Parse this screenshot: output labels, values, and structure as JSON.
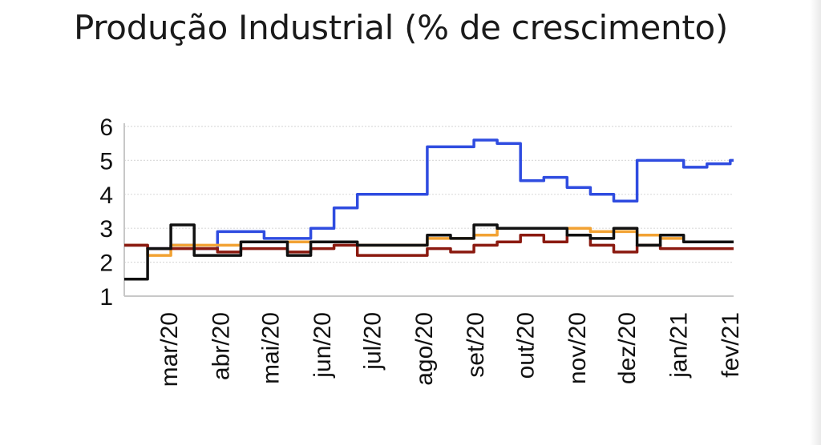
{
  "chart_data": {
    "type": "line",
    "title": "Produção Industrial (% de crescimento)",
    "xlabel": "",
    "ylabel": "",
    "ylim": [
      1,
      6
    ],
    "yticks": [
      1,
      2,
      3,
      4,
      5,
      6
    ],
    "x_tick_labels": [
      "mar/20",
      "abr/20",
      "mai/20",
      "jun/20",
      "jul/20",
      "ago/20",
      "set/20",
      "out/20",
      "nov/20",
      "dez/20",
      "jan/21",
      "fev/21"
    ],
    "grid": "horizontal",
    "legend": "none",
    "x": [
      "2020-02-03",
      "2020-02-17",
      "2020-03-02",
      "2020-03-16",
      "2020-03-30",
      "2020-04-13",
      "2020-04-27",
      "2020-05-11",
      "2020-05-25",
      "2020-06-08",
      "2020-06-22",
      "2020-07-06",
      "2020-07-20",
      "2020-08-03",
      "2020-08-17",
      "2020-08-31",
      "2020-09-14",
      "2020-09-28",
      "2020-10-12",
      "2020-10-26",
      "2020-11-09",
      "2020-11-23",
      "2020-12-07",
      "2020-12-21",
      "2021-01-04",
      "2021-01-18",
      "2021-02-01"
    ],
    "series": [
      {
        "color": "#2f4ce0",
        "values": [
          2.5,
          2.4,
          2.5,
          2.4,
          2.9,
          2.9,
          2.7,
          2.7,
          3.0,
          3.6,
          4.0,
          4.0,
          4.0,
          5.4,
          5.4,
          5.6,
          5.5,
          4.4,
          4.5,
          4.2,
          4.0,
          3.8,
          5.0,
          5.0,
          4.8,
          4.9,
          5.0
        ]
      },
      {
        "color": "#f2a233",
        "values": [
          2.5,
          2.2,
          2.5,
          2.5,
          2.5,
          2.6,
          2.6,
          2.6,
          2.6,
          2.6,
          2.5,
          2.5,
          2.5,
          2.7,
          2.7,
          2.8,
          3.0,
          3.0,
          3.0,
          3.0,
          2.9,
          2.9,
          2.8,
          2.7,
          2.6,
          2.6,
          2.6
        ]
      },
      {
        "color": "#8b1a10",
        "values": [
          2.5,
          2.4,
          2.4,
          2.4,
          2.3,
          2.4,
          2.4,
          2.3,
          2.4,
          2.5,
          2.2,
          2.2,
          2.2,
          2.4,
          2.3,
          2.5,
          2.6,
          2.8,
          2.6,
          2.8,
          2.5,
          2.3,
          2.5,
          2.4,
          2.4,
          2.4,
          2.4
        ]
      },
      {
        "color": "#111111",
        "values": [
          1.5,
          2.4,
          3.1,
          2.2,
          2.2,
          2.6,
          2.6,
          2.2,
          2.6,
          2.6,
          2.5,
          2.5,
          2.5,
          2.8,
          2.7,
          3.1,
          3.0,
          3.0,
          3.0,
          2.8,
          2.7,
          3.0,
          2.5,
          2.8,
          2.6,
          2.6,
          2.6
        ]
      }
    ]
  }
}
